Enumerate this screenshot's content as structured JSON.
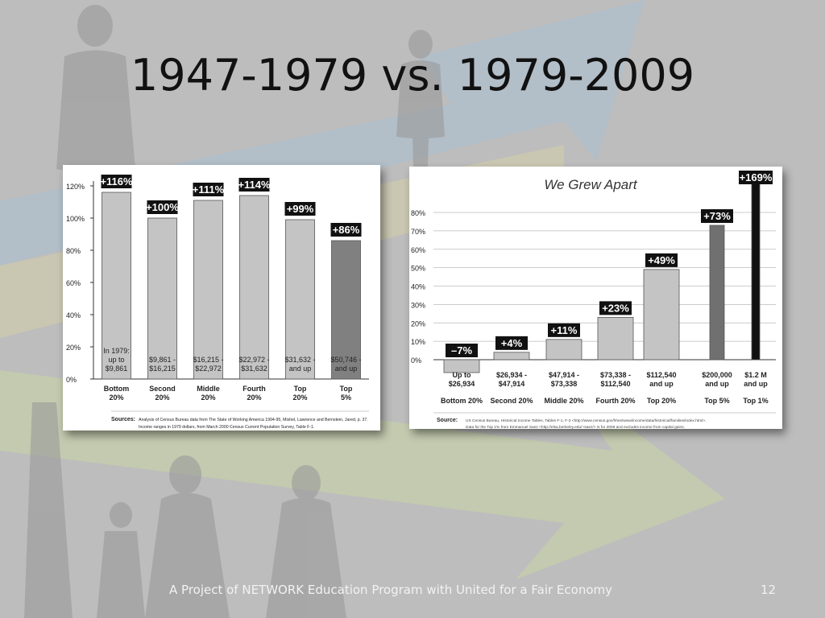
{
  "slide": {
    "title": "1947-1979 vs. 1979-2009",
    "footer": "A Project of NETWORK Education Program with United for a Fair Economy",
    "slide_number": "12"
  },
  "colors": {
    "background": "#bdbdbd",
    "bar_light": "#c4c4c4",
    "bar_dark": "#808080",
    "bar_black": "#111111",
    "label_box": "#111111"
  },
  "chart_data": [
    {
      "type": "bar",
      "title": "",
      "ylim": [
        0,
        120
      ],
      "yticks": [
        "0%",
        "20%",
        "40%",
        "60%",
        "80%",
        "100%",
        "120%"
      ],
      "ytick_values": [
        0,
        20,
        40,
        60,
        80,
        100,
        120
      ],
      "values": [
        116,
        100,
        111,
        114,
        99,
        86
      ],
      "value_labels": [
        "+116%",
        "+100%",
        "+111%",
        "+114%",
        "+99%",
        "+86%"
      ],
      "bar_colors": [
        "#c4c4c4",
        "#c4c4c4",
        "#c4c4c4",
        "#c4c4c4",
        "#c4c4c4",
        "#808080"
      ],
      "income_ranges": [
        [
          "In 1979:",
          "up to",
          "$9,861"
        ],
        [
          "$9,861 -",
          "$16,215"
        ],
        [
          "$16,215 -",
          "$22,972"
        ],
        [
          "$22,972 -",
          "$31,632"
        ],
        [
          "$31,632 -",
          "and up"
        ],
        [
          "$50,746 -",
          "and up"
        ]
      ],
      "categories": [
        [
          "Bottom",
          "20%"
        ],
        [
          "Second",
          "20%"
        ],
        [
          "Middle",
          "20%"
        ],
        [
          "Fourth",
          "20%"
        ],
        [
          "Top",
          "20%"
        ],
        [
          "Top",
          "5%"
        ]
      ],
      "source_label": "Sources:",
      "source_lines": [
        "Analysis of Census Bureau data from The State of Working America 1994-95, Mishel, Lawrence and Bernstein, Jared, p. 37.",
        "Income ranges in 1979 dollars, from March 2000 Census Current Population Survey, Table F-1."
      ]
    },
    {
      "type": "bar",
      "title": "We Grew Apart",
      "ylim": [
        -5,
        80
      ],
      "yticks": [
        "0%",
        "10%",
        "20%",
        "30%",
        "40%",
        "50%",
        "60%",
        "70%",
        "80%"
      ],
      "ytick_values": [
        0,
        10,
        20,
        30,
        40,
        50,
        60,
        70,
        80
      ],
      "values": [
        -7,
        4,
        11,
        23,
        49,
        73,
        169
      ],
      "value_labels": [
        "–7%",
        "+4%",
        "+11%",
        "+23%",
        "+49%",
        "+73%",
        "+169%"
      ],
      "bar_colors": [
        "#c4c4c4",
        "#c4c4c4",
        "#c4c4c4",
        "#c4c4c4",
        "#c4c4c4",
        "#707070",
        "#111111"
      ],
      "income_ranges": [
        [
          "Up to",
          "$26,934"
        ],
        [
          "$26,934 -",
          "$47,914"
        ],
        [
          "$47,914 -",
          "$73,338"
        ],
        [
          "$73,338 -",
          "$112,540"
        ],
        [
          "$112,540",
          "and up"
        ],
        [
          "$200,000",
          "and up"
        ],
        [
          "$1.2 M",
          "and up"
        ]
      ],
      "categories": [
        "Bottom 20%",
        "Second 20%",
        "Middle 20%",
        "Fourth 20%",
        "Top 20%",
        "Top 5%",
        "Top 1%"
      ],
      "source_label": "Source:",
      "source_lines": [
        "US Census Bureau, Historical Income Tables, Tables F-1, F-3 <http://www.census.gov/hhes/www/income/data/historical/families/index.html>.",
        "Data for the Top 1% from Emmanuel Saez <http://elsa.berkeley.edu/~saez/> is for 2008 and excludes income from capital gains."
      ]
    }
  ]
}
